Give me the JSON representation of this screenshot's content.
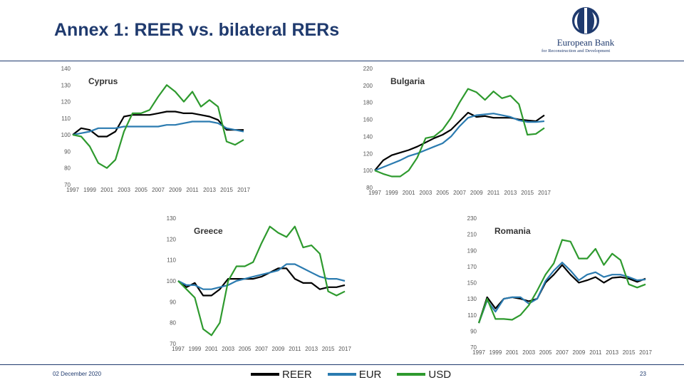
{
  "header": {
    "title": "Annex 1: REER vs. bilateral RERs"
  },
  "logo": {
    "name": "European Bank",
    "subtitle": "for Reconstruction and Development",
    "icon": "ebrd-logo-icon"
  },
  "footer": {
    "date": "02 December 2020",
    "page": "23"
  },
  "colors": {
    "REER": "#000000",
    "EUR": "#2b7bb0",
    "USD": "#2e9a2e",
    "title": "#1f3a6e"
  },
  "legend": [
    {
      "key": "REER",
      "label": "REER"
    },
    {
      "key": "EUR",
      "label": "EUR"
    },
    {
      "key": "USD",
      "label": "USD"
    }
  ],
  "chart_data": [
    {
      "type": "line",
      "title": "Cyprus",
      "x": [
        1997,
        1998,
        1999,
        2000,
        2001,
        2002,
        2003,
        2004,
        2005,
        2006,
        2007,
        2008,
        2009,
        2010,
        2011,
        2012,
        2013,
        2014,
        2015,
        2016,
        2017
      ],
      "xticks": [
        "1997",
        "1999",
        "2001",
        "2003",
        "2005",
        "2007",
        "2009",
        "2011",
        "2013",
        "2015",
        "2017"
      ],
      "ylim": [
        70,
        140
      ],
      "yticks": [
        70,
        80,
        90,
        100,
        110,
        120,
        130,
        140
      ],
      "series": [
        {
          "name": "REER",
          "values": [
            100,
            104,
            103,
            99,
            99,
            102,
            111,
            112,
            112,
            112,
            113,
            114,
            114,
            113,
            113,
            112,
            111,
            109,
            103,
            103,
            103
          ]
        },
        {
          "name": "EUR",
          "values": [
            100,
            101,
            102,
            104,
            104,
            104,
            105,
            105,
            105,
            105,
            105,
            106,
            106,
            107,
            108,
            108,
            108,
            107,
            104,
            103,
            102
          ]
        },
        {
          "name": "USD",
          "values": [
            100,
            99,
            93,
            83,
            80,
            85,
            102,
            113,
            113,
            115,
            123,
            130,
            126,
            120,
            126,
            117,
            121,
            117,
            96,
            94,
            97
          ]
        }
      ]
    },
    {
      "type": "line",
      "title": "Bulgaria",
      "x": [
        1997,
        1998,
        1999,
        2000,
        2001,
        2002,
        2003,
        2004,
        2005,
        2006,
        2007,
        2008,
        2009,
        2010,
        2011,
        2012,
        2013,
        2014,
        2015,
        2016,
        2017
      ],
      "xticks": [
        "1997",
        "1999",
        "2001",
        "2003",
        "2005",
        "2007",
        "2009",
        "2011",
        "2013",
        "2015",
        "2017"
      ],
      "ylim": [
        80,
        220
      ],
      "yticks": [
        80,
        100,
        120,
        140,
        160,
        180,
        200,
        220
      ],
      "series": [
        {
          "name": "REER",
          "values": [
            100,
            112,
            118,
            121,
            124,
            128,
            133,
            138,
            142,
            148,
            158,
            168,
            163,
            164,
            162,
            162,
            162,
            160,
            159,
            158,
            165
          ]
        },
        {
          "name": "EUR",
          "values": [
            100,
            104,
            108,
            112,
            117,
            120,
            124,
            128,
            132,
            140,
            152,
            162,
            165,
            166,
            167,
            165,
            163,
            159,
            157,
            157,
            158
          ]
        },
        {
          "name": "USD",
          "values": [
            100,
            96,
            93,
            93,
            100,
            115,
            138,
            140,
            148,
            162,
            180,
            196,
            192,
            183,
            193,
            185,
            188,
            178,
            142,
            143,
            150
          ]
        }
      ]
    },
    {
      "type": "line",
      "title": "Greece",
      "x": [
        1997,
        1998,
        1999,
        2000,
        2001,
        2002,
        2003,
        2004,
        2005,
        2006,
        2007,
        2008,
        2009,
        2010,
        2011,
        2012,
        2013,
        2014,
        2015,
        2016,
        2017
      ],
      "xticks": [
        "1997",
        "1999",
        "2001",
        "2003",
        "2005",
        "2007",
        "2009",
        "2011",
        "2013",
        "2015",
        "2017"
      ],
      "ylim": [
        70,
        130
      ],
      "yticks": [
        70,
        80,
        90,
        100,
        110,
        120,
        130
      ],
      "series": [
        {
          "name": "REER",
          "values": [
            100,
            97,
            99,
            93,
            93,
            96,
            101,
            101,
            101,
            101,
            102,
            104,
            106,
            106,
            101,
            99,
            99,
            96,
            97,
            97,
            98
          ]
        },
        {
          "name": "EUR",
          "values": [
            100,
            98,
            98,
            96,
            96,
            97,
            98,
            100,
            101,
            102,
            103,
            104,
            105,
            108,
            108,
            106,
            104,
            102,
            101,
            101,
            100
          ]
        },
        {
          "name": "USD",
          "values": [
            100,
            96,
            92,
            77,
            74,
            80,
            100,
            107,
            107,
            109,
            118,
            126,
            123,
            121,
            126,
            116,
            117,
            113,
            95,
            93,
            95
          ]
        }
      ]
    },
    {
      "type": "line",
      "title": "Romania",
      "x": [
        1997,
        1998,
        1999,
        2000,
        2001,
        2002,
        2003,
        2004,
        2005,
        2006,
        2007,
        2008,
        2009,
        2010,
        2011,
        2012,
        2013,
        2014,
        2015,
        2016,
        2017
      ],
      "xticks": [
        "1997",
        "1999",
        "2001",
        "2003",
        "2005",
        "2007",
        "2009",
        "2011",
        "2013",
        "2015",
        "2017"
      ],
      "ylim": [
        70,
        230
      ],
      "yticks": [
        70,
        90,
        110,
        130,
        150,
        170,
        190,
        210,
        230
      ],
      "series": [
        {
          "name": "REER",
          "values": [
            100,
            132,
            118,
            130,
            132,
            130,
            127,
            130,
            150,
            160,
            172,
            160,
            150,
            153,
            157,
            150,
            156,
            157,
            155,
            151,
            155
          ]
        },
        {
          "name": "EUR",
          "values": [
            100,
            128,
            114,
            130,
            132,
            132,
            124,
            130,
            152,
            165,
            175,
            165,
            153,
            160,
            163,
            157,
            160,
            160,
            157,
            153,
            154
          ]
        },
        {
          "name": "USD",
          "values": [
            100,
            130,
            105,
            105,
            104,
            110,
            122,
            140,
            160,
            174,
            203,
            201,
            180,
            180,
            192,
            172,
            186,
            178,
            148,
            144,
            148
          ]
        }
      ]
    }
  ]
}
